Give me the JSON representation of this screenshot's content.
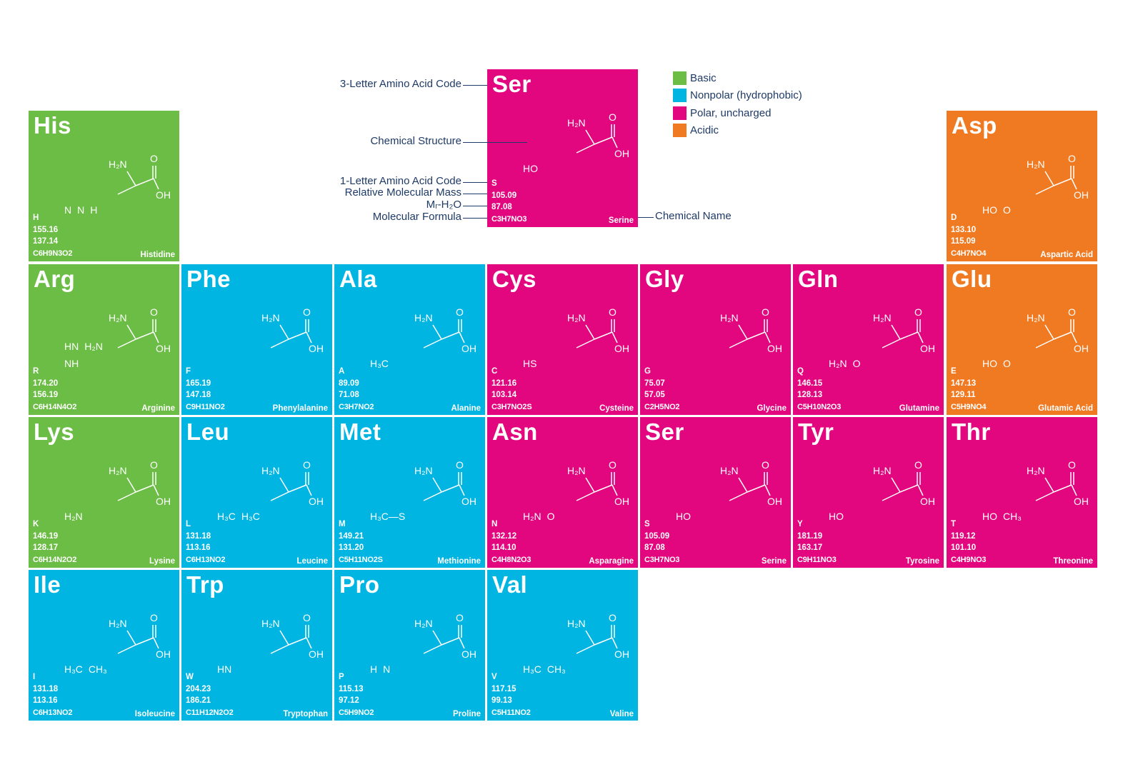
{
  "colors": {
    "basic": "#6cbd45",
    "nonpolar": "#00b5e2",
    "polar": "#e2077e",
    "acidic": "#f07a22",
    "label": "#1e3a66"
  },
  "legend": [
    {
      "label": "Basic",
      "category": "basic"
    },
    {
      "label": "Nonpolar (hydrophobic)",
      "category": "nonpolar"
    },
    {
      "label": "Polar, uncharged",
      "category": "polar"
    },
    {
      "label": "Acidic",
      "category": "acidic"
    }
  ],
  "key": {
    "labels": {
      "code3": "3-Letter Amino Acid Code",
      "structure": "Chemical Structure",
      "code1": "1-Letter Amino Acid Code",
      "mass": "Relative Molecular Mass",
      "mass_water": "Mᵣ-H₂O",
      "formula": "Molecular Formula",
      "name": "Chemical Name"
    },
    "cell": {
      "code3": "Ser",
      "code1": "S",
      "mass": "105.09",
      "mass_water": "87.08",
      "formula": "C3H7NO3",
      "name": "Serine",
      "category": "polar",
      "side": [
        "HO"
      ]
    }
  },
  "backbone": {
    "amine": "H₂N",
    "carbonyl": "O",
    "hydroxyl": "OH"
  },
  "cells": [
    {
      "code3": "His",
      "code1": "H",
      "mass": "155.16",
      "mass_water": "137.14",
      "formula": "C6H9N3O2",
      "name": "Histidine",
      "category": "basic",
      "row": 0,
      "col": 0,
      "side": [
        "N",
        "N",
        "H"
      ]
    },
    {
      "code3": "Asp",
      "code1": "D",
      "mass": "133.10",
      "mass_water": "115.09",
      "formula": "C4H7NO4",
      "name": "Aspartic Acid",
      "category": "acidic",
      "row": 0,
      "col": 6,
      "side": [
        "HO",
        "O"
      ]
    },
    {
      "code3": "Arg",
      "code1": "R",
      "mass": "174.20",
      "mass_water": "156.19",
      "formula": "C6H14N4O2",
      "name": "Arginine",
      "category": "basic",
      "row": 1,
      "col": 0,
      "side": [
        "HN",
        "H₂N",
        "NH"
      ]
    },
    {
      "code3": "Phe",
      "code1": "F",
      "mass": "165.19",
      "mass_water": "147.18",
      "formula": "C9H11NO2",
      "name": "Phenylalanine",
      "category": "nonpolar",
      "row": 1,
      "col": 1,
      "side": []
    },
    {
      "code3": "Ala",
      "code1": "A",
      "mass": "89.09",
      "mass_water": "71.08",
      "formula": "C3H7NO2",
      "name": "Alanine",
      "category": "nonpolar",
      "row": 1,
      "col": 2,
      "side": [
        "H₃C"
      ]
    },
    {
      "code3": "Cys",
      "code1": "C",
      "mass": "121.16",
      "mass_water": "103.14",
      "formula": "C3H7NO2S",
      "name": "Cysteine",
      "category": "polar",
      "row": 1,
      "col": 3,
      "side": [
        "HS"
      ]
    },
    {
      "code3": "Gly",
      "code1": "G",
      "mass": "75.07",
      "mass_water": "57.05",
      "formula": "C2H5NO2",
      "name": "Glycine",
      "category": "polar",
      "row": 1,
      "col": 4,
      "side": []
    },
    {
      "code3": "Gln",
      "code1": "Q",
      "mass": "146.15",
      "mass_water": "128.13",
      "formula": "C5H10N2O3",
      "name": "Glutamine",
      "category": "polar",
      "row": 1,
      "col": 5,
      "side": [
        "H₂N",
        "O"
      ]
    },
    {
      "code3": "Glu",
      "code1": "E",
      "mass": "147.13",
      "mass_water": "129.11",
      "formula": "C5H9NO4",
      "name": "Glutamic Acid",
      "category": "acidic",
      "row": 1,
      "col": 6,
      "side": [
        "HO",
        "O"
      ]
    },
    {
      "code3": "Lys",
      "code1": "K",
      "mass": "146.19",
      "mass_water": "128.17",
      "formula": "C6H14N2O2",
      "name": "Lysine",
      "category": "basic",
      "row": 2,
      "col": 0,
      "side": [
        "H₂N"
      ]
    },
    {
      "code3": "Leu",
      "code1": "L",
      "mass": "131.18",
      "mass_water": "113.16",
      "formula": "C6H13NO2",
      "name": "Leucine",
      "category": "nonpolar",
      "row": 2,
      "col": 1,
      "side": [
        "H₃C",
        "H₃C"
      ]
    },
    {
      "code3": "Met",
      "code1": "M",
      "mass": "149.21",
      "mass_water": "131.20",
      "formula": "C5H11NO2S",
      "name": "Methionine",
      "category": "nonpolar",
      "row": 2,
      "col": 2,
      "side": [
        "H₃C—S"
      ]
    },
    {
      "code3": "Asn",
      "code1": "N",
      "mass": "132.12",
      "mass_water": "114.10",
      "formula": "C4H8N2O3",
      "name": "Asparagine",
      "category": "polar",
      "row": 2,
      "col": 3,
      "side": [
        "H₂N",
        "O"
      ]
    },
    {
      "code3": "Ser",
      "code1": "S",
      "mass": "105.09",
      "mass_water": "87.08",
      "formula": "C3H7NO3",
      "name": "Serine",
      "category": "polar",
      "row": 2,
      "col": 4,
      "side": [
        "HO"
      ]
    },
    {
      "code3": "Tyr",
      "code1": "Y",
      "mass": "181.19",
      "mass_water": "163.17",
      "formula": "C9H11NO3",
      "name": "Tyrosine",
      "category": "polar",
      "row": 2,
      "col": 5,
      "side": [
        "HO"
      ]
    },
    {
      "code3": "Thr",
      "code1": "T",
      "mass": "119.12",
      "mass_water": "101.10",
      "formula": "C4H9NO3",
      "name": "Threonine",
      "category": "polar",
      "row": 2,
      "col": 6,
      "side": [
        "HO",
        "CH₃"
      ]
    },
    {
      "code3": "Ile",
      "code1": "I",
      "mass": "131.18",
      "mass_water": "113.16",
      "formula": "C6H13NO2",
      "name": "Isoleucine",
      "category": "nonpolar",
      "row": 3,
      "col": 0,
      "side": [
        "H₃C",
        "CH₃"
      ]
    },
    {
      "code3": "Trp",
      "code1": "W",
      "mass": "204.23",
      "mass_water": "186.21",
      "formula": "C11H12N2O2",
      "name": "Tryptophan",
      "category": "nonpolar",
      "row": 3,
      "col": 1,
      "side": [
        "HN"
      ]
    },
    {
      "code3": "Pro",
      "code1": "P",
      "mass": "115.13",
      "mass_water": "97.12",
      "formula": "C5H9NO2",
      "name": "Proline",
      "category": "nonpolar",
      "row": 3,
      "col": 2,
      "side": [
        "H",
        "N"
      ]
    },
    {
      "code3": "Val",
      "code1": "V",
      "mass": "117.15",
      "mass_water": "99.13",
      "formula": "C5H11NO2",
      "name": "Valine",
      "category": "nonpolar",
      "row": 3,
      "col": 3,
      "side": [
        "H₃C",
        "CH₃"
      ]
    }
  ]
}
